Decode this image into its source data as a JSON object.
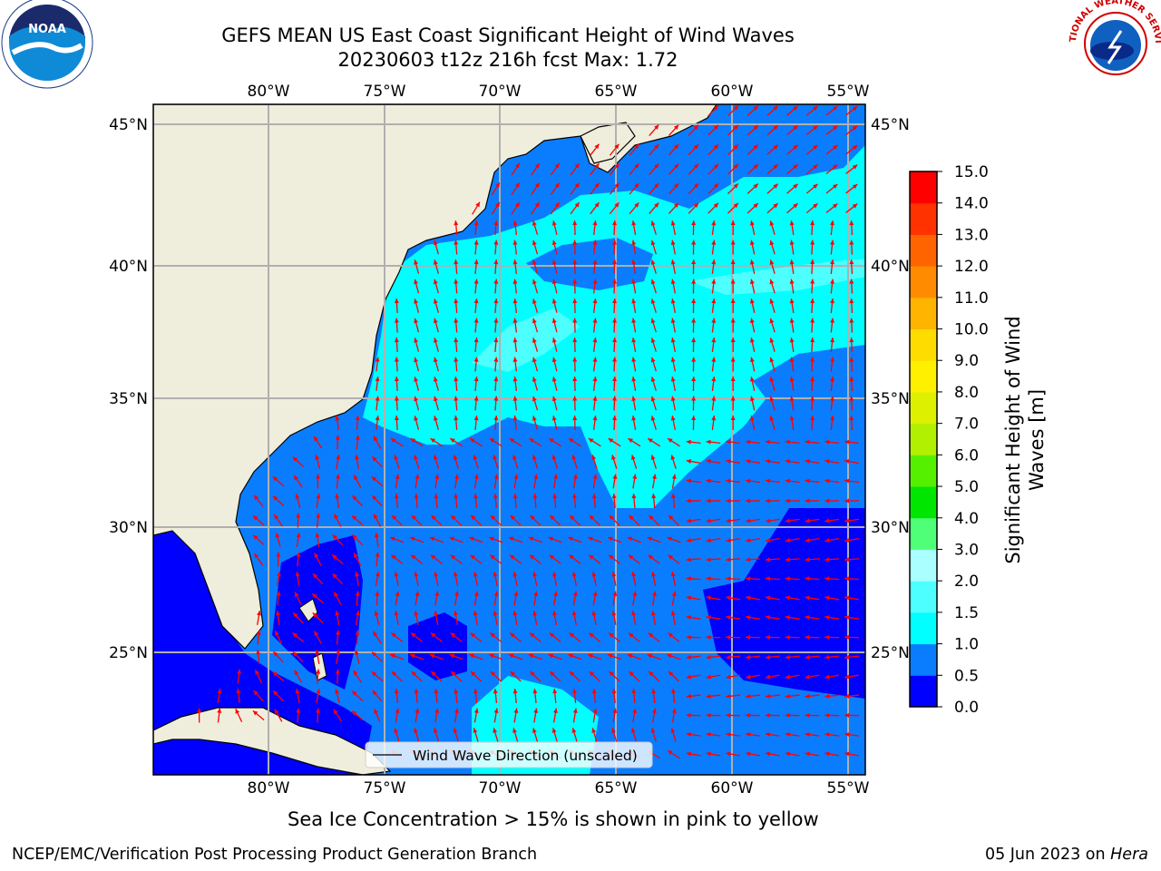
{
  "title_line1": "GEFS MEAN US East Coast Significant Height of Wind Waves",
  "title_line2": "20230603 t12z 216h fcst   Max: 1.72",
  "longitude_labels": [
    "80°W",
    "75°W",
    "70°W",
    "65°W",
    "60°W",
    "55°W"
  ],
  "latitude_labels": [
    "45°N",
    "40°N",
    "35°N",
    "30°N",
    "25°N"
  ],
  "legend_label": "Wind Wave Direction (unscaled)",
  "colorbar": {
    "label_line1": "Significant Height of Wind",
    "label_line2": "Waves [m]",
    "ticks": [
      "0.0",
      "0.5",
      "1.0",
      "1.5",
      "2.0",
      "3.0",
      "4.0",
      "5.0",
      "6.0",
      "7.0",
      "8.0",
      "9.0",
      "10.0",
      "11.0",
      "12.0",
      "13.0",
      "14.0",
      "15.0"
    ],
    "colors": [
      "#0000ff",
      "#0a7dff",
      "#00ffff",
      "#4dffff",
      "#aaffff",
      "#50ff78",
      "#00e600",
      "#55f000",
      "#b0f000",
      "#dcf000",
      "#fff000",
      "#ffdc00",
      "#ffb400",
      "#ff8c00",
      "#ff6400",
      "#ff3200",
      "#ff0000"
    ]
  },
  "sea_ice_note": "Sea Ice Concentration > 15% is shown in pink to yellow",
  "producer": "NCEP/EMC/Verification Post Processing Product Generation Branch",
  "run_date": "05 Jun 2023 on ",
  "host": "Hera",
  "logos": {
    "left": "NOAA",
    "right_text": "NATIONAL WEATHER SERVICE"
  },
  "colors": {
    "land": "#efeedd",
    "wave_low": "#0000ff",
    "wave_mid": "#0a7dff",
    "wave_high": "#00ffff",
    "wave_higher": "#4dffff",
    "arrow": "#ff0000",
    "grid": "#b0b0b0"
  }
}
